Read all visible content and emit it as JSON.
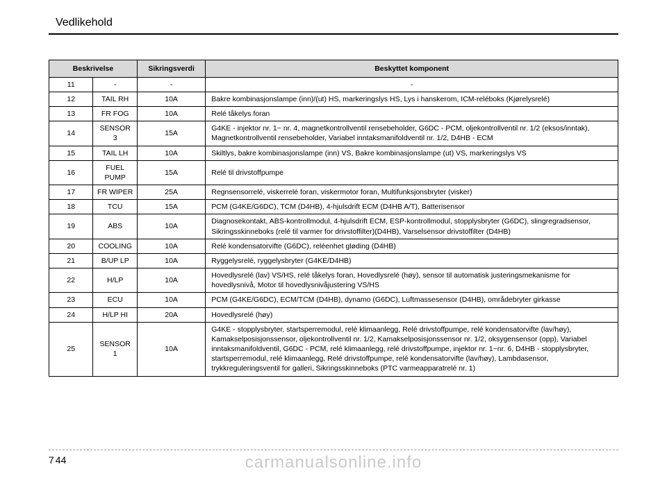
{
  "header": {
    "section_title": "Vedlikehold"
  },
  "table": {
    "headers": {
      "col1_2": "Beskrivelse",
      "col3": "Sikringsverdi",
      "col4": "Beskyttet komponent"
    },
    "rows": [
      {
        "num": "11",
        "name": "-",
        "rating": "-",
        "desc": "-",
        "desc_align": "center"
      },
      {
        "num": "12",
        "name": "TAIL RH",
        "rating": "10A",
        "desc": "Bakre kombinasjonslampe (inn)/(ut) HS, markeringslys HS, Lys i hanskerom, ICM-reléboks (Kjørelysrelé)"
      },
      {
        "num": "13",
        "name": "FR FOG",
        "rating": "10A",
        "desc": "Relé tåkelys foran"
      },
      {
        "num": "14",
        "name": "SENSOR 3",
        "rating": "15A",
        "desc": "G4KE - injektor nr. 1~ nr. 4, magnetkontrollventil rensebeholder, G6DC - PCM, oljekontrollventil nr. 1/2 (eksos/inntak), Magnetkontrollventil rensebeholder, Variabel inntaksmanifoldventil nr. 1/2, D4HB - ECM"
      },
      {
        "num": "15",
        "name": "TAIL LH",
        "rating": "10A",
        "desc": "Skiltlys, bakre kombinasjonslampe (inn) VS, Bakre kombinasjonslampe (ut) VS, markeringslys VS"
      },
      {
        "num": "16",
        "name": "FUEL PUMP",
        "rating": "15A",
        "desc": "Relé til drivstoffpumpe"
      },
      {
        "num": "17",
        "name": "FR WIPER",
        "rating": "25A",
        "desc": "Regnsensorrelé, viskerrelé foran, viskermotor foran, Multifunksjonsbryter (visker)"
      },
      {
        "num": "18",
        "name": "TCU",
        "rating": "15A",
        "desc": "PCM (G4KE/G6DC), TCM (D4HB), 4-hjulsdrift ECM (D4HB A/T), Batterisensor"
      },
      {
        "num": "19",
        "name": "ABS",
        "rating": "10A",
        "desc": "Diagnosekontakt, ABS-kontrollmodul, 4-hjulsdrift ECM, ESP-kontrollmodul, stopplysbryter (G6DC), slingregradsensor, Sikringsskinneboks (relé til varmer for drivstoffilter)(D4HB), Varselsensor drivstoffilter (D4HB)"
      },
      {
        "num": "20",
        "name": "COOLING",
        "rating": "10A",
        "desc": "Relé kondensatorvifte (G6DC), reléenhet gløding (D4HB)"
      },
      {
        "num": "21",
        "name": "B/UP LP",
        "rating": "10A",
        "desc": "Ryggelysrelé, ryggelysbryter (G4KE/D4HB)"
      },
      {
        "num": "22",
        "name": "H/LP",
        "rating": "10A",
        "desc": "Hovedlysrelé (lav) VS/HS, relé tåkelys foran, Hovedlysrelé (høy), sensor til automatisk justeringsmekanisme for hovedlysnivå, Motor til hovedlysnivåjustering VS/HS"
      },
      {
        "num": "23",
        "name": "ECU",
        "rating": "10A",
        "desc": "PCM (G4KE/G6DC), ECM/TCM (D4HB), dynamo (G6DC), Luftmassesensor (D4HB), områdebryter girkasse"
      },
      {
        "num": "24",
        "name": "H/LP HI",
        "rating": "20A",
        "desc": "Hovedlysrelé (høy)"
      },
      {
        "num": "25",
        "name": "SENSOR 1",
        "rating": "10A",
        "desc": "G4KE - stopplysbryter, startsperremodul, relé klimaanlegg, Relé drivstoffpumpe, relé kondensatorvifte (lav/høy), Kamakselposisjonssensor, oljekontrollventil nr. 1/2, Kamakselposisjonssensor nr. 1/2, oksygensensor (opp), Variabel inntaksmanifoldventil, G6DC - PCM, relé klimaanlegg, relé drivstoffpumpe, injektor nr. 1~nr. 6, D4HB - stopplysbryter, startsperremodul, relé klimaanlegg, Relé drivstoffpumpe, relé kondensatorvifte (lav/høy), Lambdasensor, trykkreguleringsventil for galleri, Sikringsskinneboks (PTC varmeapparatrelé nr. 1)"
      }
    ]
  },
  "footer": {
    "chapter": "7",
    "page": "44"
  },
  "watermark": "carmanualsonline.info",
  "style": {
    "background": "#ffffff",
    "text_color": "#000000",
    "header_bg": "#d9d9d9",
    "border_color": "#000000",
    "watermark_color": "rgba(150,150,150,0.5)",
    "body_font_size": "10.5px",
    "title_font_size": "16px"
  }
}
